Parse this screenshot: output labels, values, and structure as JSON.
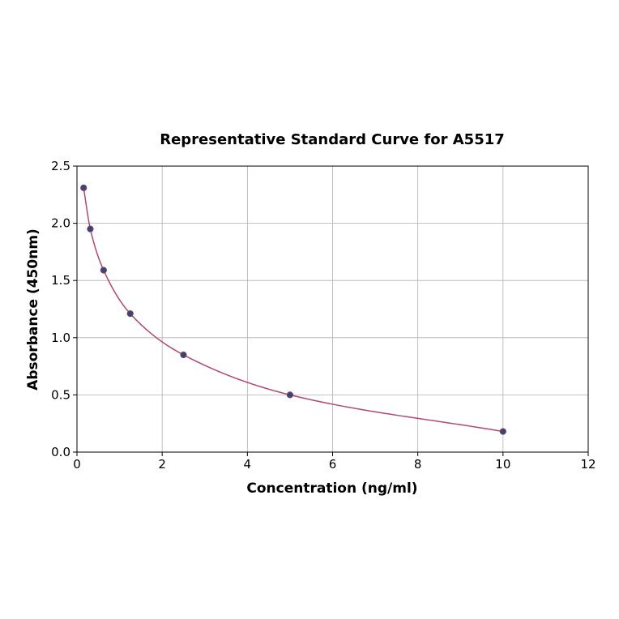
{
  "chart_data": {
    "type": "scatter",
    "title": "Representative Standard Curve for A5517",
    "xlabel": "Concentration (ng/ml)",
    "ylabel": "Absorbance (450nm)",
    "xlim": [
      0,
      12
    ],
    "ylim": [
      0,
      2.5
    ],
    "x_ticks": [
      0,
      2,
      4,
      6,
      8,
      10,
      12
    ],
    "y_ticks": [
      0.0,
      0.5,
      1.0,
      1.5,
      2.0,
      2.5
    ],
    "x_tick_labels": [
      "0",
      "2",
      "4",
      "6",
      "8",
      "10",
      "12"
    ],
    "y_tick_labels": [
      "0.0",
      "0.5",
      "1.0",
      "1.5",
      "2.0",
      "2.5"
    ],
    "grid": true,
    "series": [
      {
        "x": [
          0.156,
          0.313,
          0.625,
          1.25,
          2.5,
          5,
          10
        ],
        "y": [
          2.31,
          1.95,
          1.59,
          1.21,
          0.85,
          0.5,
          0.18
        ],
        "marker_color": "#2e4a7a",
        "marker_edge_color": "#8b3a62",
        "fit_line_color": "#b5476e",
        "fit_line": "smooth"
      }
    ]
  }
}
